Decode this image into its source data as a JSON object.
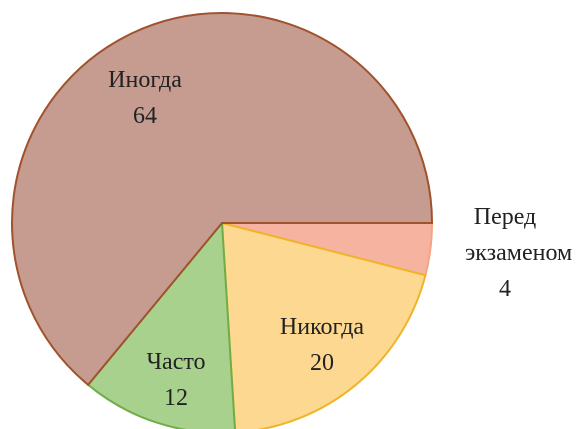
{
  "chart_data": {
    "type": "pie",
    "categories": [
      "Перед экзаменом",
      "Никогда",
      "Часто",
      "Иногда"
    ],
    "values": [
      4,
      20,
      12,
      64
    ],
    "colors": [
      "#f6b3a0",
      "#fdd890",
      "#a9d18e",
      "#c69c90"
    ],
    "borders": [
      "#f4a582",
      "#f0b429",
      "#70ad47",
      "#a0522d"
    ]
  }
}
